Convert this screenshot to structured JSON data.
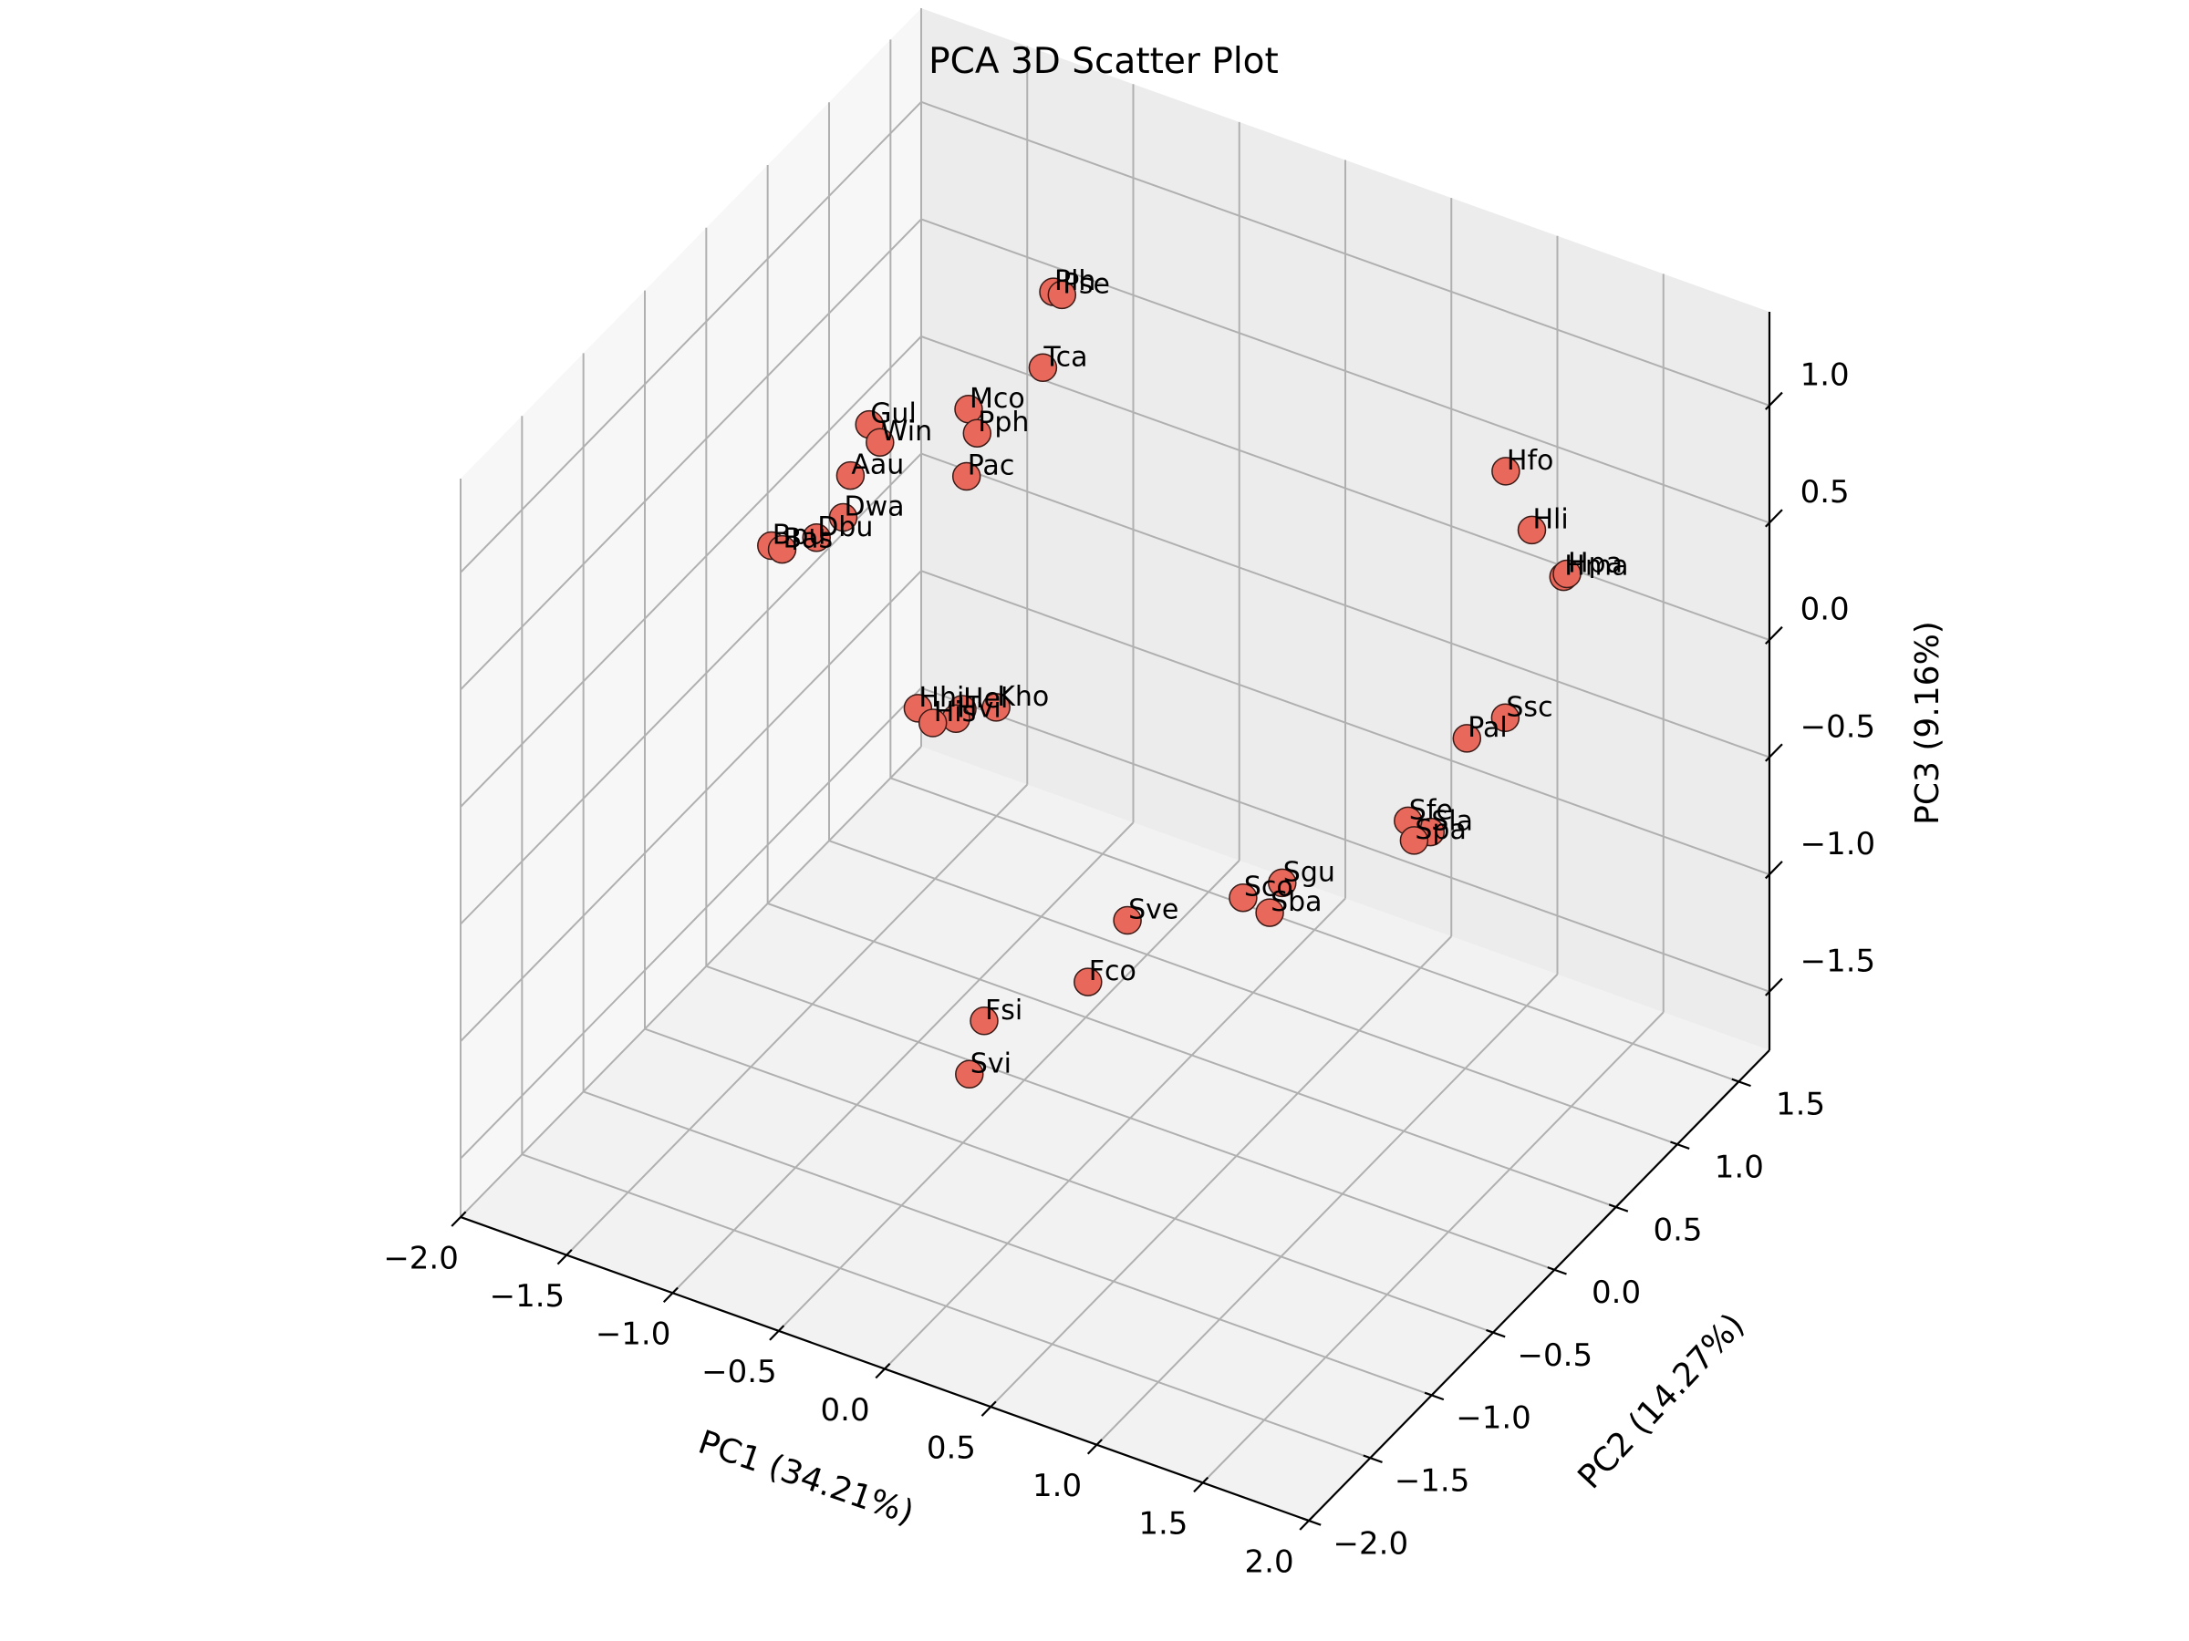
{
  "chart_data": {
    "type": "scatter",
    "title": "PCA 3D Scatter Plot",
    "xlabel": "PC1 (34.21%)",
    "ylabel": "PC2 (14.27%)",
    "zlabel": "PC3 (9.16%)",
    "xlim": [
      -2.0,
      2.0
    ],
    "ylim": [
      -2.0,
      1.75
    ],
    "zlim": [
      -1.75,
      1.4
    ],
    "xticks": [
      -2.0,
      -1.5,
      -1.0,
      -0.5,
      0.0,
      0.5,
      1.0,
      1.5,
      2.0
    ],
    "yticks": [
      -2.0,
      -1.5,
      -1.0,
      -0.5,
      0.0,
      0.5,
      1.0,
      1.5
    ],
    "zticks": [
      -1.5,
      -1.0,
      -0.5,
      0.0,
      0.5,
      1.0
    ],
    "xtick_labels": [
      "−2.0",
      "−1.5",
      "−1.0",
      "−0.5",
      "0.0",
      "0.5",
      "1.0",
      "1.5",
      "2.0"
    ],
    "ytick_labels": [
      "−2.0",
      "−1.5",
      "−1.0",
      "−0.5",
      "0.0",
      "0.5",
      "1.0",
      "1.5"
    ],
    "ztick_labels": [
      "−1.5",
      "−1.0",
      "−0.5",
      "0.0",
      "0.5",
      "1.0"
    ],
    "grid": true,
    "marker_color": "#e8695b",
    "marker_edge_color": "#3a1a16",
    "points": [
      {
        "label": "Plh",
        "x": -1.33,
        "y": 1.67,
        "z": 0.45
      },
      {
        "label": "Pse",
        "x": -1.29,
        "y": 1.67,
        "z": 0.45
      },
      {
        "label": "Tca",
        "x": -1.38,
        "y": 1.67,
        "z": 0.11
      },
      {
        "label": "Mco",
        "x": -1.73,
        "y": 1.67,
        "z": -0.18
      },
      {
        "label": "Pph",
        "x": -1.69,
        "y": 1.67,
        "z": -0.27
      },
      {
        "label": "Pac",
        "x": -1.74,
        "y": 1.67,
        "z": -0.47
      },
      {
        "label": "Gul",
        "x": -1.92,
        "y": 1.19,
        "z": -0.05
      },
      {
        "label": "Win",
        "x": -1.87,
        "y": 1.19,
        "z": -0.11
      },
      {
        "label": "Aau",
        "x": -1.94,
        "y": 1.07,
        "z": -0.21
      },
      {
        "label": "Dwa",
        "x": -1.91,
        "y": 0.96,
        "z": -0.32
      },
      {
        "label": "Dbu",
        "x": -1.99,
        "y": 0.88,
        "z": -0.39
      },
      {
        "label": "Bpu",
        "x": -2.04,
        "y": 0.6,
        "z": -0.29
      },
      {
        "label": "Bas",
        "x": -1.99,
        "y": 0.6,
        "z": -0.29
      },
      {
        "label": "Hel",
        "x": -1.76,
        "y": 1.67,
        "z": -1.47
      },
      {
        "label": "Hvi",
        "x": -1.79,
        "y": 1.67,
        "z": -1.52
      },
      {
        "label": "Kho",
        "x": -1.6,
        "y": 1.67,
        "z": -1.41
      },
      {
        "label": "Hhi",
        "x": -1.83,
        "y": 1.43,
        "z": -1.36
      },
      {
        "label": "His",
        "x": -1.76,
        "y": 1.43,
        "z": -1.4
      },
      {
        "label": "Hfo",
        "x": 1.44,
        "y": 0.57,
        "z": 1.17
      },
      {
        "label": "Hli",
        "x": 1.54,
        "y": 0.61,
        "z": 0.93
      },
      {
        "label": "Hma",
        "x": 1.73,
        "y": 0.54,
        "z": 0.83
      },
      {
        "label": "Hpa",
        "x": 1.74,
        "y": 0.55,
        "z": 0.84
      },
      {
        "label": "Ssc",
        "x": 1.6,
        "y": 0.29,
        "z": 0.32
      },
      {
        "label": "Pal",
        "x": 1.28,
        "y": 0.53,
        "z": 0.0
      },
      {
        "label": "Sla",
        "x": 1.16,
        "y": 0.44,
        "z": -0.39
      },
      {
        "label": "Sfe",
        "x": 1.02,
        "y": 0.5,
        "z": -0.42
      },
      {
        "label": "Spa",
        "x": 1.06,
        "y": 0.48,
        "z": -0.48
      },
      {
        "label": "Sgu",
        "x": 0.6,
        "y": 0.2,
        "z": -0.66
      },
      {
        "label": "Sba",
        "x": 0.57,
        "y": 0.15,
        "z": -0.77
      },
      {
        "label": "Sco",
        "x": 0.41,
        "y": 0.21,
        "z": -0.79
      },
      {
        "label": "Sve",
        "x": 0.38,
        "y": -0.68,
        "z": -0.42
      },
      {
        "label": "Fco",
        "x": 0.02,
        "y": -0.38,
        "z": -0.96
      },
      {
        "label": "Fsi",
        "x": 0.44,
        "y": -1.95,
        "z": -0.15
      },
      {
        "label": "Svi",
        "x": 0.37,
        "y": -1.95,
        "z": -0.4
      }
    ]
  }
}
